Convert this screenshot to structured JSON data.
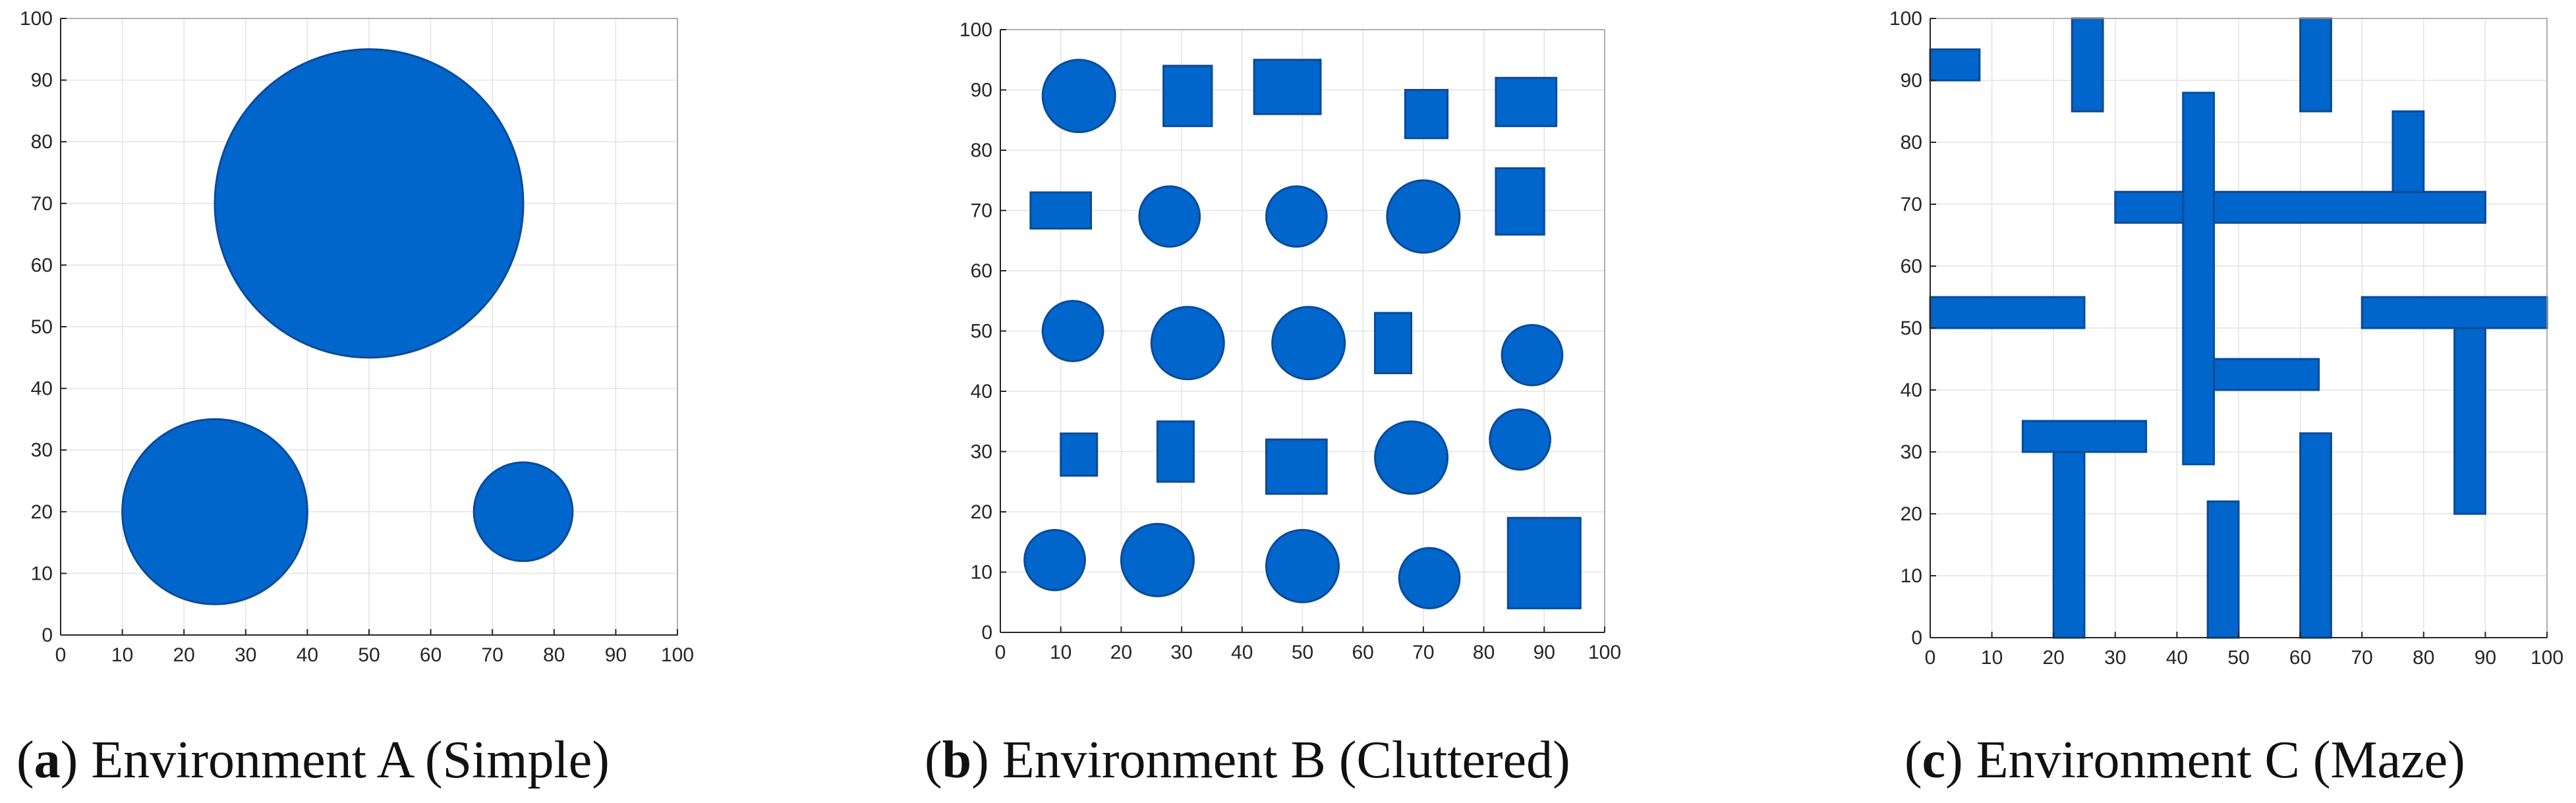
{
  "colors": {
    "obstacle_fill": "#0066CC",
    "obstacle_stroke": "#0A4A9A",
    "grid": "#E3E3E3",
    "axis": "#262626"
  },
  "chart_data": [
    {
      "type": "map",
      "caption_letter": "a",
      "caption_text": "Environment A (Simple)",
      "xlim": [
        0,
        100
      ],
      "ylim": [
        0,
        100
      ],
      "xticks": [
        0,
        10,
        20,
        30,
        40,
        50,
        60,
        70,
        80,
        90,
        100
      ],
      "yticks": [
        0,
        10,
        20,
        30,
        40,
        50,
        60,
        70,
        80,
        90,
        100
      ],
      "grid": true,
      "obstacles": [
        {
          "shape": "circle",
          "cx": 50,
          "cy": 70,
          "r": 25
        },
        {
          "shape": "circle",
          "cx": 25,
          "cy": 20,
          "r": 15
        },
        {
          "shape": "circle",
          "cx": 75,
          "cy": 20,
          "r": 8
        }
      ]
    },
    {
      "type": "map",
      "caption_letter": "b",
      "caption_text": "Environment B (Cluttered)",
      "xlim": [
        0,
        100
      ],
      "ylim": [
        0,
        100
      ],
      "xticks": [
        0,
        10,
        20,
        30,
        40,
        50,
        60,
        70,
        80,
        90,
        100
      ],
      "yticks": [
        0,
        10,
        20,
        30,
        40,
        50,
        60,
        70,
        80,
        90,
        100
      ],
      "grid": true,
      "obstacles": [
        {
          "shape": "circle",
          "cx": 13,
          "cy": 89,
          "r": 6
        },
        {
          "shape": "rect",
          "x0": 27,
          "y0": 84,
          "x1": 35,
          "y1": 94
        },
        {
          "shape": "rect",
          "x0": 42,
          "y0": 86,
          "x1": 53,
          "y1": 95
        },
        {
          "shape": "rect",
          "x0": 67,
          "y0": 82,
          "x1": 74,
          "y1": 90
        },
        {
          "shape": "rect",
          "x0": 82,
          "y0": 84,
          "x1": 92,
          "y1": 92
        },
        {
          "shape": "rect",
          "x0": 5,
          "y0": 67,
          "x1": 15,
          "y1": 73
        },
        {
          "shape": "circle",
          "cx": 28,
          "cy": 69,
          "r": 5
        },
        {
          "shape": "circle",
          "cx": 49,
          "cy": 69,
          "r": 5
        },
        {
          "shape": "circle",
          "cx": 70,
          "cy": 69,
          "r": 6
        },
        {
          "shape": "rect",
          "x0": 82,
          "y0": 66,
          "x1": 90,
          "y1": 77
        },
        {
          "shape": "circle",
          "cx": 12,
          "cy": 50,
          "r": 5
        },
        {
          "shape": "circle",
          "cx": 31,
          "cy": 48,
          "r": 6
        },
        {
          "shape": "circle",
          "cx": 51,
          "cy": 48,
          "r": 6
        },
        {
          "shape": "rect",
          "x0": 62,
          "y0": 43,
          "x1": 68,
          "y1": 53
        },
        {
          "shape": "circle",
          "cx": 88,
          "cy": 46,
          "r": 5
        },
        {
          "shape": "rect",
          "x0": 10,
          "y0": 26,
          "x1": 16,
          "y1": 33
        },
        {
          "shape": "rect",
          "x0": 26,
          "y0": 25,
          "x1": 32,
          "y1": 35
        },
        {
          "shape": "rect",
          "x0": 44,
          "y0": 23,
          "x1": 54,
          "y1": 32
        },
        {
          "shape": "circle",
          "cx": 68,
          "cy": 29,
          "r": 6
        },
        {
          "shape": "circle",
          "cx": 86,
          "cy": 32,
          "r": 5
        },
        {
          "shape": "circle",
          "cx": 9,
          "cy": 12,
          "r": 5
        },
        {
          "shape": "circle",
          "cx": 26,
          "cy": 12,
          "r": 6
        },
        {
          "shape": "circle",
          "cx": 50,
          "cy": 11,
          "r": 6
        },
        {
          "shape": "circle",
          "cx": 71,
          "cy": 9,
          "r": 5
        },
        {
          "shape": "rect",
          "x0": 84,
          "y0": 4,
          "x1": 96,
          "y1": 19
        }
      ]
    },
    {
      "type": "map",
      "caption_letter": "c",
      "caption_text": "Environment C (Maze)",
      "xlim": [
        0,
        100
      ],
      "ylim": [
        0,
        100
      ],
      "xticks": [
        0,
        10,
        20,
        30,
        40,
        50,
        60,
        70,
        80,
        90,
        100
      ],
      "yticks": [
        0,
        10,
        20,
        30,
        40,
        50,
        60,
        70,
        80,
        90,
        100
      ],
      "grid": true,
      "obstacles": [
        {
          "shape": "rect",
          "x0": 0,
          "y0": 90,
          "x1": 8,
          "y1": 95
        },
        {
          "shape": "rect",
          "x0": 23,
          "y0": 85,
          "x1": 28,
          "y1": 100
        },
        {
          "shape": "rect",
          "x0": 60,
          "y0": 85,
          "x1": 65,
          "y1": 100
        },
        {
          "shape": "rect",
          "x0": 30,
          "y0": 67,
          "x1": 90,
          "y1": 72
        },
        {
          "shape": "rect",
          "x0": 41,
          "y0": 28,
          "x1": 46,
          "y1": 88
        },
        {
          "shape": "rect",
          "x0": 75,
          "y0": 72,
          "x1": 80,
          "y1": 85
        },
        {
          "shape": "rect",
          "x0": 0,
          "y0": 50,
          "x1": 25,
          "y1": 55
        },
        {
          "shape": "rect",
          "x0": 70,
          "y0": 50,
          "x1": 100,
          "y1": 55
        },
        {
          "shape": "rect",
          "x0": 85,
          "y0": 20,
          "x1": 90,
          "y1": 50
        },
        {
          "shape": "rect",
          "x0": 46,
          "y0": 40,
          "x1": 63,
          "y1": 45
        },
        {
          "shape": "rect",
          "x0": 15,
          "y0": 30,
          "x1": 35,
          "y1": 35
        },
        {
          "shape": "rect",
          "x0": 20,
          "y0": 0,
          "x1": 25,
          "y1": 30
        },
        {
          "shape": "rect",
          "x0": 45,
          "y0": 0,
          "x1": 50,
          "y1": 22
        },
        {
          "shape": "rect",
          "x0": 60,
          "y0": 0,
          "x1": 65,
          "y1": 33
        }
      ]
    }
  ]
}
